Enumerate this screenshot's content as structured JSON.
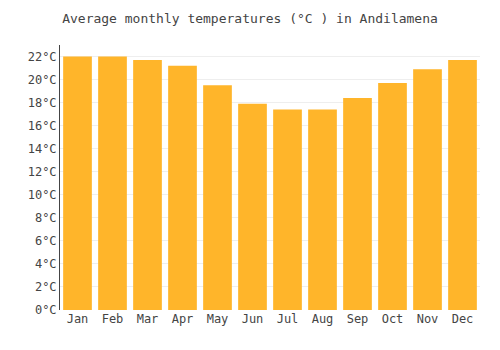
{
  "chart_data": {
    "type": "bar",
    "title": "Average monthly temperatures (°C ) in Andilamena",
    "categories": [
      "Jan",
      "Feb",
      "Mar",
      "Apr",
      "May",
      "Jun",
      "Jul",
      "Aug",
      "Sep",
      "Oct",
      "Nov",
      "Dec"
    ],
    "values": [
      22.0,
      22.0,
      21.7,
      21.2,
      19.5,
      17.9,
      17.4,
      17.4,
      18.4,
      19.7,
      20.9,
      21.7
    ],
    "color": "#FFB52A",
    "ylim": [
      0,
      23
    ],
    "yticks": [
      {
        "value": 0,
        "label": "0°C"
      },
      {
        "value": 2,
        "label": "2°C"
      },
      {
        "value": 4,
        "label": "4°C"
      },
      {
        "value": 6,
        "label": "6°C"
      },
      {
        "value": 8,
        "label": "8°C"
      },
      {
        "value": 10,
        "label": "10°C"
      },
      {
        "value": 12,
        "label": "12°C"
      },
      {
        "value": 14,
        "label": "14°C"
      },
      {
        "value": 16,
        "label": "16°C"
      },
      {
        "value": 18,
        "label": "18°C"
      },
      {
        "value": 20,
        "label": "20°C"
      },
      {
        "value": 22,
        "label": "22°C"
      }
    ],
    "grid": true
  }
}
